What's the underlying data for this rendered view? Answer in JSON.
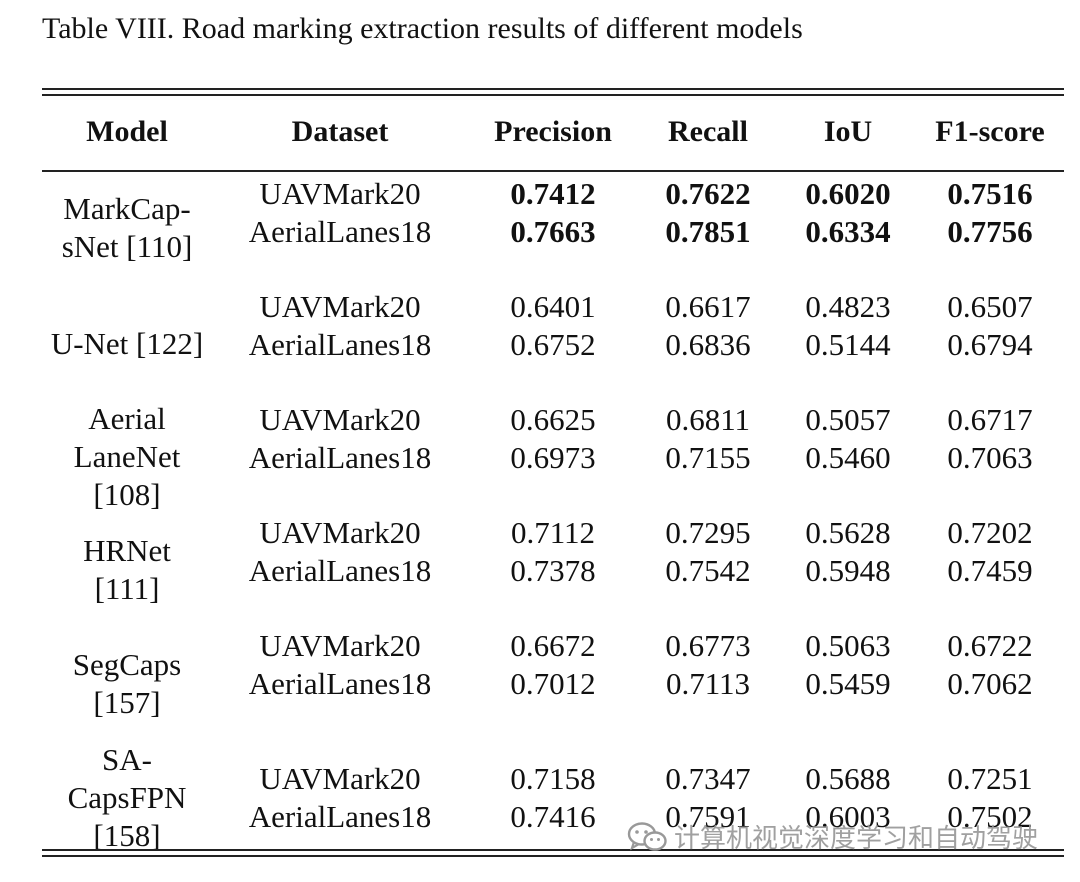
{
  "caption": "Table VIII. Road marking extraction results of different models",
  "headers": {
    "model": "Model",
    "dataset": "Dataset",
    "precision": "Precision",
    "recall": "Recall",
    "iou": "IoU",
    "f1": "F1-score"
  },
  "groups": [
    {
      "model_lines": [
        "MarkCap-",
        "sNet [110]"
      ],
      "bold": true,
      "rows": [
        {
          "dataset": "UAVMark20",
          "precision": "0.7412",
          "recall": "0.7622",
          "iou": "0.6020",
          "f1": "0.7516"
        },
        {
          "dataset": "AerialLanes18",
          "precision": "0.7663",
          "recall": "0.7851",
          "iou": "0.6334",
          "f1": "0.7756"
        }
      ]
    },
    {
      "model_lines": [
        "U-Net [122]"
      ],
      "bold": false,
      "rows": [
        {
          "dataset": "UAVMark20",
          "precision": "0.6401",
          "recall": "0.6617",
          "iou": "0.4823",
          "f1": "0.6507"
        },
        {
          "dataset": "AerialLanes18",
          "precision": "0.6752",
          "recall": "0.6836",
          "iou": "0.5144",
          "f1": "0.6794"
        }
      ]
    },
    {
      "model_lines": [
        "Aerial",
        "LaneNet",
        "[108]"
      ],
      "bold": false,
      "rows": [
        {
          "dataset": "UAVMark20",
          "precision": "0.6625",
          "recall": "0.6811",
          "iou": "0.5057",
          "f1": "0.6717"
        },
        {
          "dataset": "AerialLanes18",
          "precision": "0.6973",
          "recall": "0.7155",
          "iou": "0.5460",
          "f1": "0.7063"
        }
      ]
    },
    {
      "model_lines": [
        "HRNet",
        "[111]"
      ],
      "bold": false,
      "rows": [
        {
          "dataset": "UAVMark20",
          "precision": "0.7112",
          "recall": "0.7295",
          "iou": "0.5628",
          "f1": "0.7202"
        },
        {
          "dataset": "AerialLanes18",
          "precision": "0.7378",
          "recall": "0.7542",
          "iou": "0.5948",
          "f1": "0.7459"
        }
      ]
    },
    {
      "model_lines": [
        "SegCaps",
        "[157]"
      ],
      "bold": false,
      "rows": [
        {
          "dataset": "UAVMark20",
          "precision": "0.6672",
          "recall": "0.6773",
          "iou": "0.5063",
          "f1": "0.6722"
        },
        {
          "dataset": "AerialLanes18",
          "precision": "0.7012",
          "recall": "0.7113",
          "iou": "0.5459",
          "f1": "0.7062"
        }
      ]
    },
    {
      "model_lines": [
        "SA-",
        "CapsFPN",
        "[158]"
      ],
      "bold": false,
      "rows": [
        {
          "dataset": "UAVMark20",
          "precision": "0.7158",
          "recall": "0.7347",
          "iou": "0.5688",
          "f1": "0.7251"
        },
        {
          "dataset": "AerialLanes18",
          "precision": "0.7416",
          "recall": "0.7591",
          "iou": "0.6003",
          "f1": "0.7502"
        }
      ]
    }
  ],
  "watermark": {
    "icon": "wechat-icon",
    "text": "计算机视觉深度学习和自动驾驶"
  }
}
